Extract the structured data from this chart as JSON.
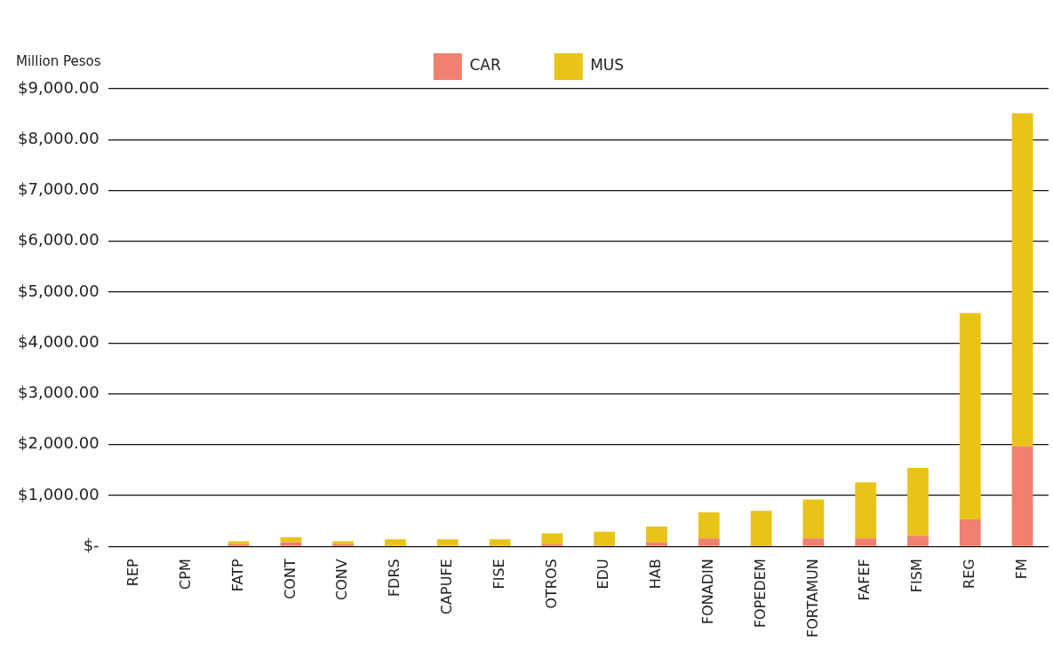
{
  "chart_data": {
    "type": "bar",
    "ylabel": "Million Pesos",
    "stacked": true,
    "legend": "top",
    "grid": "y",
    "categories": [
      "REP",
      "CPM",
      "FATP",
      "CONT",
      "CONV",
      "FDRS",
      "CAPUFE",
      "FISE",
      "OTROS",
      "EDU",
      "HAB",
      "FONADIN",
      "FOPEDEM",
      "FORTAMUN",
      "FAFEF",
      "FISM",
      "REG",
      "FM"
    ],
    "series": [
      {
        "name": "CAR",
        "color": "#f08070",
        "values": [
          0,
          0,
          40,
          80,
          40,
          0,
          0,
          0,
          40,
          20,
          80,
          160,
          20,
          160,
          160,
          210,
          530,
          1970
        ]
      },
      {
        "name": "MUS",
        "color": "#e8c418",
        "values": [
          0,
          0,
          60,
          100,
          60,
          140,
          140,
          140,
          220,
          270,
          310,
          510,
          680,
          760,
          1100,
          1330,
          4060,
          6550
        ]
      }
    ],
    "ylim": [
      0,
      9000
    ],
    "yticks": [
      {
        "value": 0,
        "label": "$-"
      },
      {
        "value": 1000,
        "label": "$1,000.00"
      },
      {
        "value": 2000,
        "label": "$2,000.00"
      },
      {
        "value": 3000,
        "label": "$3,000.00"
      },
      {
        "value": 4000,
        "label": "$4,000.00"
      },
      {
        "value": 5000,
        "label": "$5,000.00"
      },
      {
        "value": 6000,
        "label": "$6,000.00"
      },
      {
        "value": 7000,
        "label": "$7,000.00"
      },
      {
        "value": 8000,
        "label": "$8,000.00"
      },
      {
        "value": 9000,
        "label": "$9,000.00"
      }
    ]
  }
}
